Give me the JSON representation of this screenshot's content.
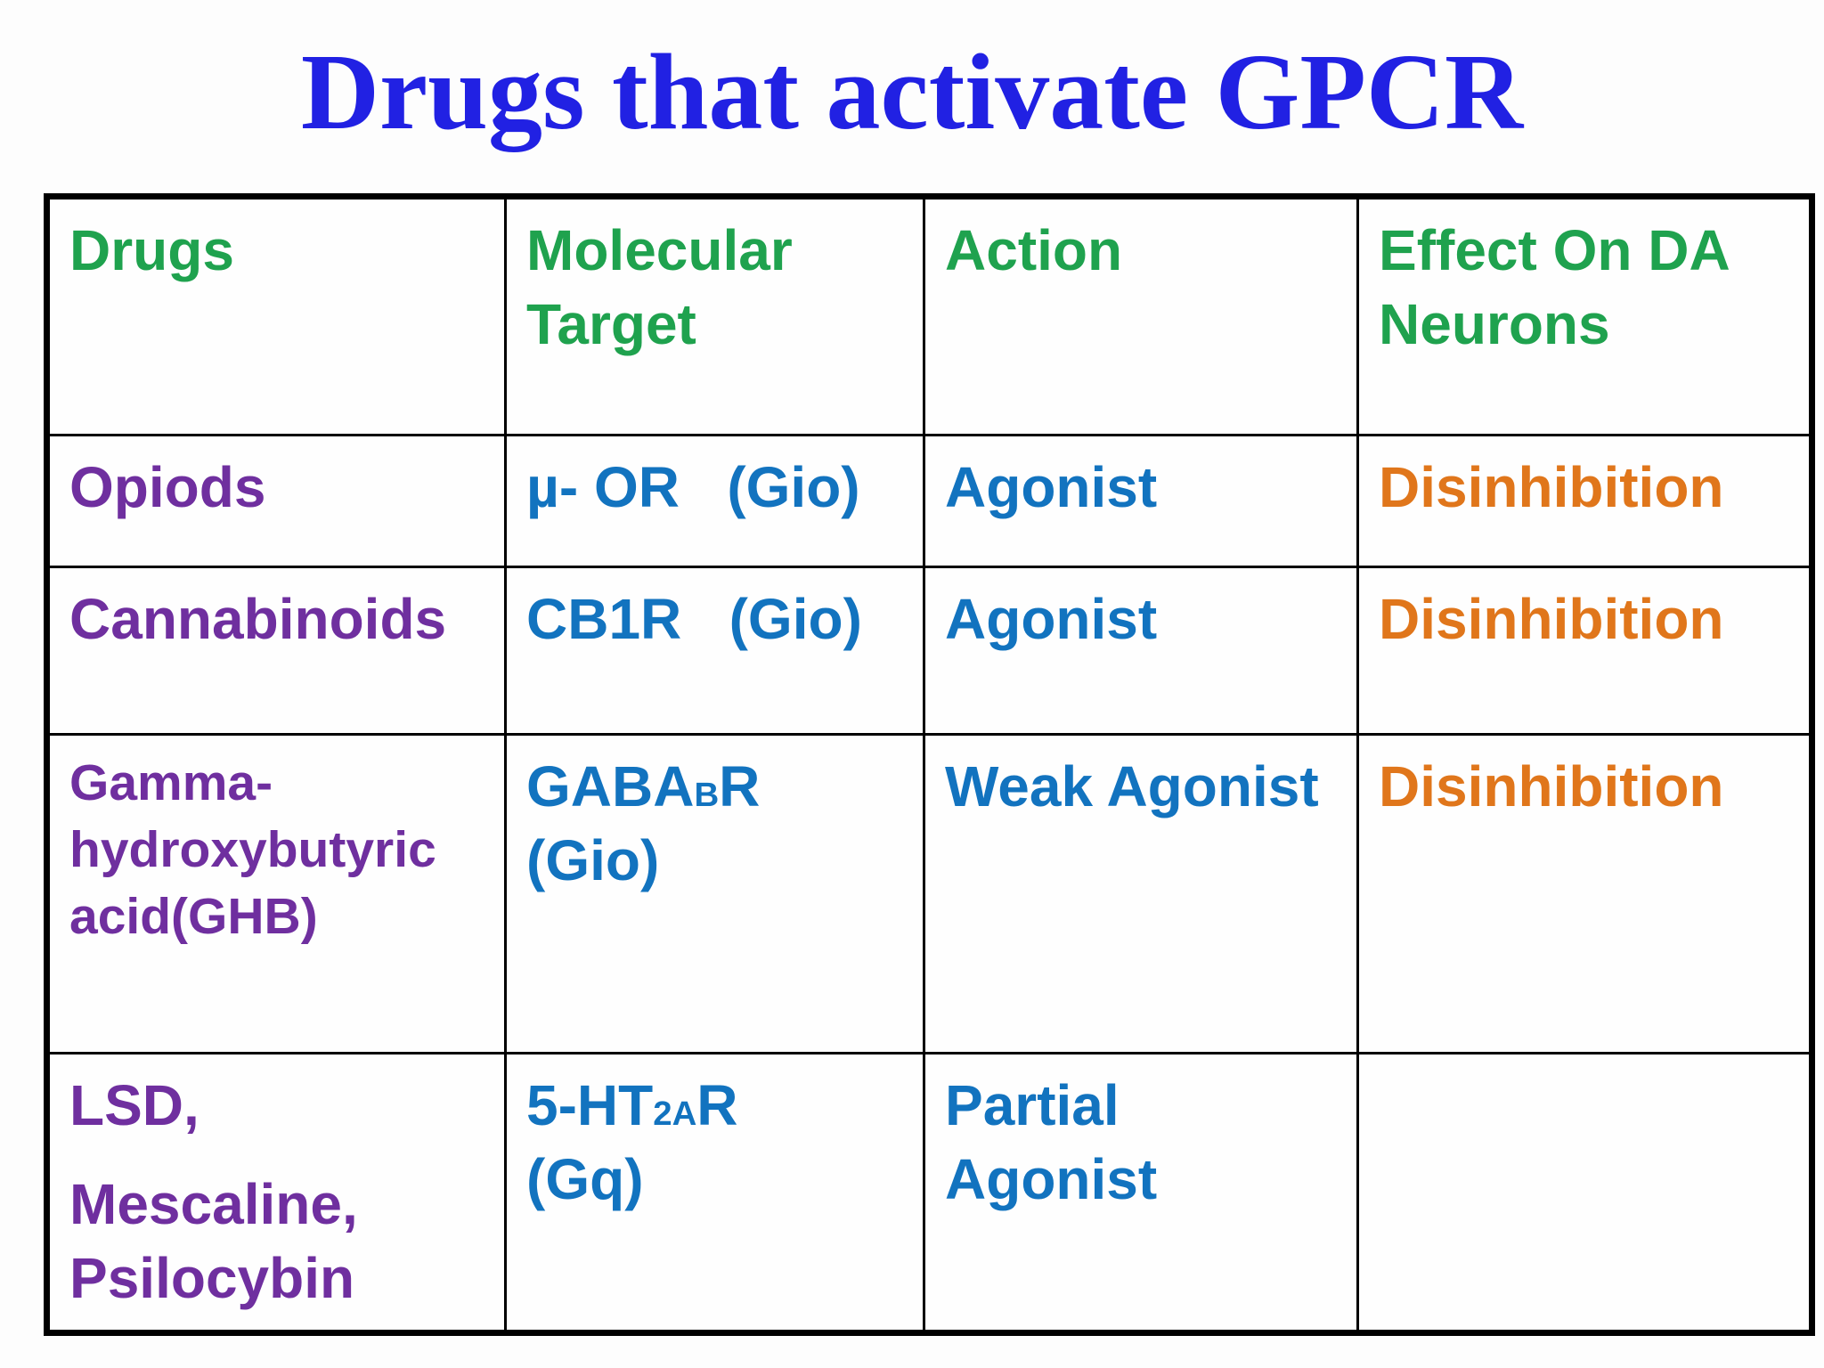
{
  "slide": {
    "title": "Drugs that activate GPCR"
  },
  "colors": {
    "title_blue": "#2121e3",
    "header_green": "#1fa24e",
    "drug_purple": "#6f2f9f",
    "target_action_blue": "#1273bf",
    "effect_orange": "#e0761b",
    "table_border": "#000000",
    "background": "#fdfdfd"
  },
  "table": {
    "headers": [
      {
        "label": "Drugs"
      },
      {
        "label": "Molecular Target"
      },
      {
        "label": "Action"
      },
      {
        "label": "Effect On DA Neurons"
      }
    ],
    "rows": [
      {
        "drug_lines": [
          "Opiods"
        ],
        "target": {
          "pre": "µ- OR",
          "sub": "",
          "post": "   (Gio)"
        },
        "action": "Agonist",
        "effect": "Disinhibition"
      },
      {
        "drug_lines": [
          "Cannabinoids"
        ],
        "target": {
          "pre": "CB1R",
          "sub": "",
          "post": "   (Gio)"
        },
        "action": "Agonist",
        "effect": "Disinhibition"
      },
      {
        "drug_lines": [
          "Gamma-hydroxybutyric acid(GHB)"
        ],
        "target": {
          "pre": "GABA",
          "sub": "B",
          "post": "R   (Gio)"
        },
        "action": "Weak Agonist",
        "effect": "Disinhibition"
      },
      {
        "drug_lines": [
          "LSD,",
          "Mescaline,",
          "Psilocybin"
        ],
        "target": {
          "pre": "5-HT",
          "sub": "2A",
          "post": "R      (Gq)"
        },
        "action": "Partial Agonist",
        "effect": ""
      }
    ]
  }
}
